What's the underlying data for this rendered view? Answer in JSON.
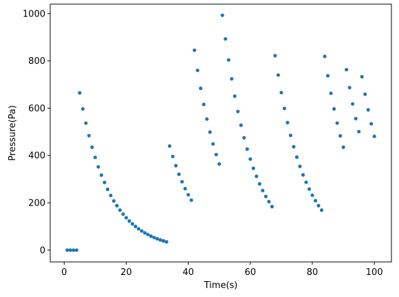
{
  "chart_data": {
    "type": "scatter",
    "xlabel": "Time(s)",
    "ylabel": "Pressure(Pa)",
    "xlim": [
      -4.5,
      105.5
    ],
    "ylim": [
      -50,
      1040
    ],
    "xticks": [
      0,
      20,
      40,
      60,
      80,
      100
    ],
    "yticks": [
      0,
      200,
      400,
      600,
      800,
      1000
    ],
    "grid": false,
    "marker_color": "#1f77b4",
    "series": [
      {
        "x": [
          1,
          2,
          3,
          4,
          5,
          6,
          7,
          8,
          9,
          10,
          11,
          12,
          13,
          14,
          15,
          16,
          17,
          18,
          19,
          20,
          21,
          22,
          23,
          24,
          25,
          26,
          27,
          28,
          29,
          30,
          31,
          32,
          33,
          34,
          35,
          36,
          37,
          38,
          39,
          40,
          41,
          42,
          43,
          44,
          45,
          46,
          47,
          48,
          49,
          50,
          51,
          52,
          53,
          54,
          55,
          56,
          57,
          58,
          59,
          60,
          61,
          62,
          63,
          64,
          65,
          66,
          67,
          68,
          69,
          70,
          71,
          72,
          73,
          74,
          75,
          76,
          77,
          78,
          79,
          80,
          81,
          82,
          83,
          84,
          85,
          86,
          87,
          88,
          89,
          90,
          91,
          92,
          93,
          94,
          95,
          96,
          97,
          98,
          99,
          100
        ],
        "y": [
          0,
          0,
          0,
          0,
          665,
          597,
          537,
          484,
          435,
          392,
          352,
          317,
          286,
          257,
          231,
          208,
          188,
          169,
          152,
          137,
          123,
          111,
          100,
          90,
          81,
          73,
          66,
          59,
          53,
          48,
          43,
          39,
          35,
          440,
          396,
          357,
          321,
          289,
          260,
          234,
          211,
          845,
          760,
          684,
          616,
          554,
          499,
          449,
          404,
          364,
          993,
          893,
          804,
          724,
          651,
          586,
          528,
          475,
          427,
          385,
          346,
          312,
          280,
          252,
          227,
          205,
          184,
          822,
          740,
          666,
          599,
          539,
          485,
          437,
          393,
          354,
          318,
          287,
          258,
          232,
          209,
          188,
          169,
          819,
          737,
          663,
          597,
          537,
          483,
          435,
          763,
          687,
          618,
          556,
          501,
          733,
          659,
          593,
          534,
          481
        ]
      }
    ]
  }
}
